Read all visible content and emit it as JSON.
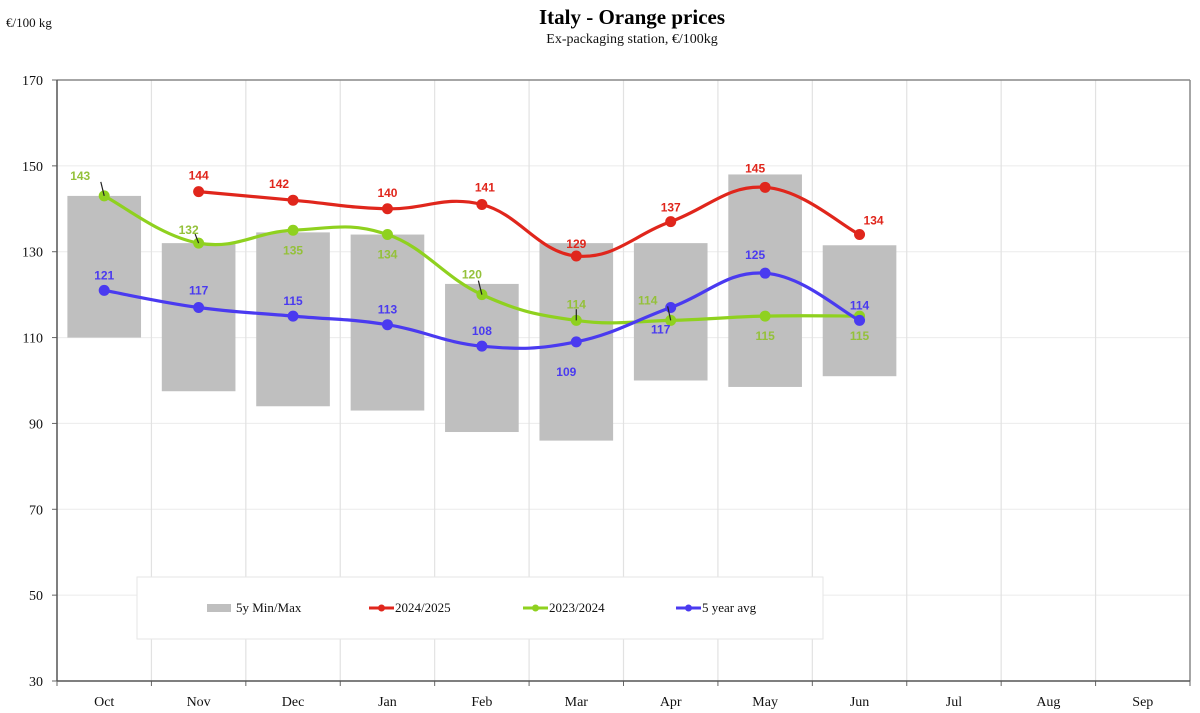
{
  "chart_data": {
    "type": "line",
    "title": "Italy  -  Orange prices",
    "subtitle": "Ex-packaging station, €/100kg",
    "ylabel": "€/100 kg",
    "xlabel": "",
    "ylim": [
      30,
      170
    ],
    "yticks": [
      30,
      50,
      70,
      90,
      110,
      130,
      150,
      170
    ],
    "categories": [
      "Oct",
      "Nov",
      "Dec",
      "Jan",
      "Feb",
      "Mar",
      "Apr",
      "May",
      "Jun",
      "Jul",
      "Aug",
      "Sep"
    ],
    "grid": true,
    "legend_position": "bottom-left",
    "range_band": {
      "name": "5y Min/Max",
      "color": "#bfbfbf",
      "min": [
        110,
        97.5,
        94,
        93,
        88,
        86,
        100,
        98.5,
        101,
        null,
        null,
        null
      ],
      "max": [
        143,
        132,
        134.5,
        134,
        122.5,
        132,
        132,
        148,
        131.5,
        null,
        null,
        null
      ]
    },
    "series": [
      {
        "name": "2024/2025",
        "color": "#e0261c",
        "values": [
          null,
          144,
          142,
          140,
          141,
          129,
          137,
          145,
          134,
          null,
          null,
          null
        ],
        "labels": [
          null,
          "144",
          "142",
          "140",
          "141",
          "129",
          "137",
          "145",
          "134",
          null,
          null,
          null
        ]
      },
      {
        "name": "2023/2024",
        "color": "#8fd11f",
        "label_color": "#94c13a",
        "values": [
          143,
          132,
          135,
          134,
          120,
          114,
          114,
          115,
          115,
          null,
          null,
          null
        ],
        "labels": [
          "143",
          "132",
          "135",
          "134",
          "120",
          "114",
          "114",
          "115",
          "115",
          null,
          null,
          null
        ]
      },
      {
        "name": "5 year avg",
        "color": "#4a3af0",
        "values": [
          121,
          117,
          115,
          113,
          108,
          109,
          117,
          125,
          114,
          null,
          null,
          null
        ],
        "labels": [
          "121",
          "117",
          "115",
          "113",
          "108",
          "109",
          "117",
          "125",
          "114",
          null,
          null,
          null
        ]
      }
    ]
  }
}
